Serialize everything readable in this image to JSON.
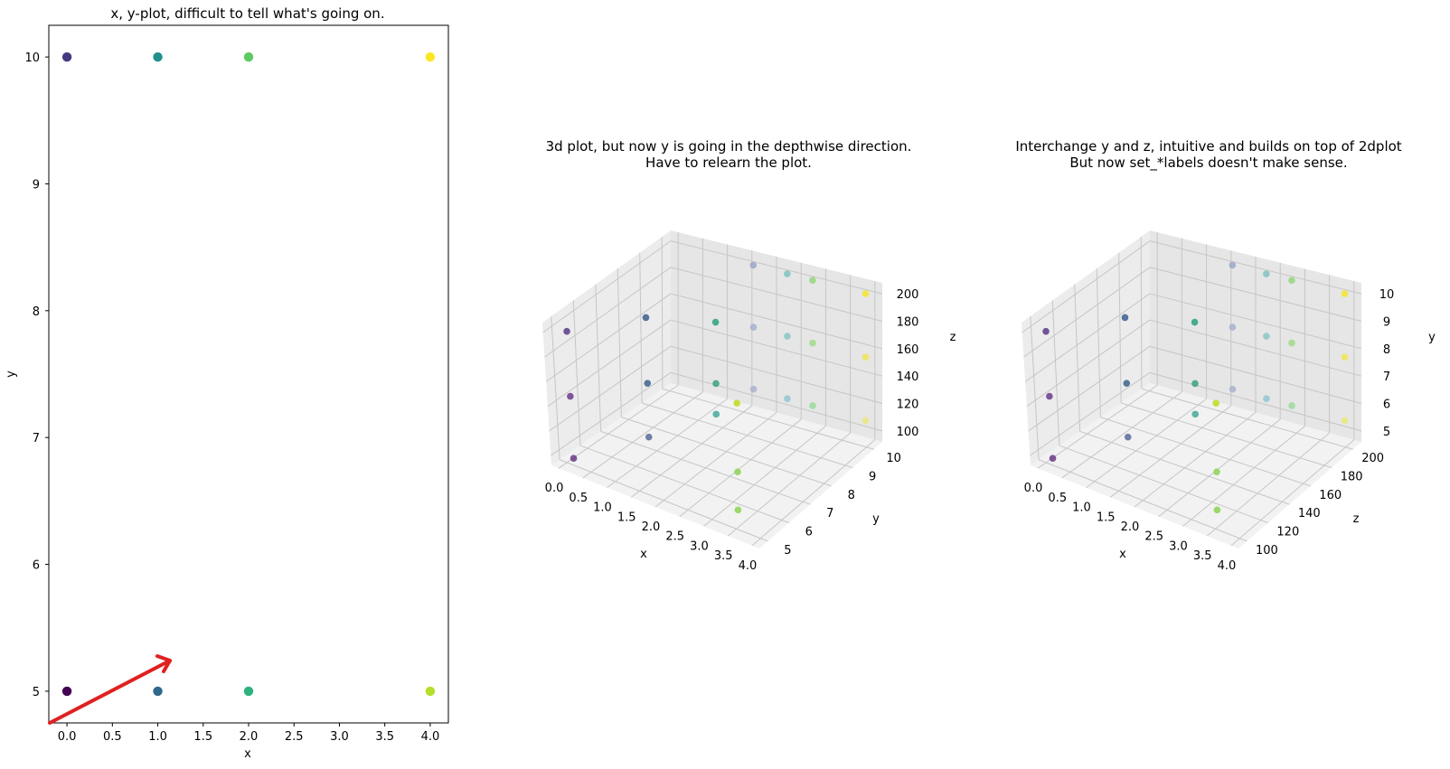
{
  "chart_data": [
    {
      "type": "scatter",
      "title": "x, y-plot, difficult to tell what's going on.",
      "xlabel": "x",
      "ylabel": "y",
      "xlim": [
        -0.2,
        4.2
      ],
      "ylim": [
        4.75,
        10.25
      ],
      "xticks": [
        "0.0",
        "0.5",
        "1.0",
        "1.5",
        "2.0",
        "2.5",
        "3.0",
        "3.5",
        "4.0"
      ],
      "yticks": [
        "5",
        "6",
        "7",
        "8",
        "9",
        "10"
      ],
      "points": [
        {
          "x": 0,
          "y": 10,
          "color": "#443a83"
        },
        {
          "x": 1,
          "y": 10,
          "color": "#21908d"
        },
        {
          "x": 2,
          "y": 10,
          "color": "#5ec962"
        },
        {
          "x": 4,
          "y": 10,
          "color": "#fde725"
        },
        {
          "x": 0,
          "y": 5,
          "color": "#440154"
        },
        {
          "x": 1,
          "y": 5,
          "color": "#31688e"
        },
        {
          "x": 2,
          "y": 5,
          "color": "#2db27d"
        },
        {
          "x": 4,
          "y": 5,
          "color": "#b5de2b"
        }
      ],
      "annotation_arrow_color": "#e0211f"
    },
    {
      "type": "scatter",
      "title": "3d plot, but now y is going in the depthwise direction.\nHave to relearn the plot.",
      "xlabel": "x",
      "ylabel": "y",
      "zlabel": "z",
      "xticks": [
        "0.0",
        "0.5",
        "1.0",
        "1.5",
        "2.0",
        "2.5",
        "3.0",
        "3.5",
        "4.0"
      ],
      "yticks": [
        "5",
        "6",
        "7",
        "8",
        "9",
        "10"
      ],
      "zticks": [
        "100",
        "120",
        "140",
        "160",
        "180",
        "200"
      ]
    },
    {
      "type": "scatter",
      "title": "Interchange y and z, intuitive and builds on top of 2dplot\nBut now set_*labels doesn't make sense.",
      "xlabel": "x",
      "ylabel": "y",
      "zlabel": "z",
      "xticks": [
        "0.0",
        "0.5",
        "1.0",
        "1.5",
        "2.0",
        "2.5",
        "3.0",
        "3.5",
        "4.0"
      ],
      "yticks": [
        "5",
        "6",
        "7",
        "8",
        "9",
        "10"
      ],
      "zticks": [
        "100",
        "120",
        "140",
        "160",
        "180",
        "200"
      ]
    }
  ]
}
